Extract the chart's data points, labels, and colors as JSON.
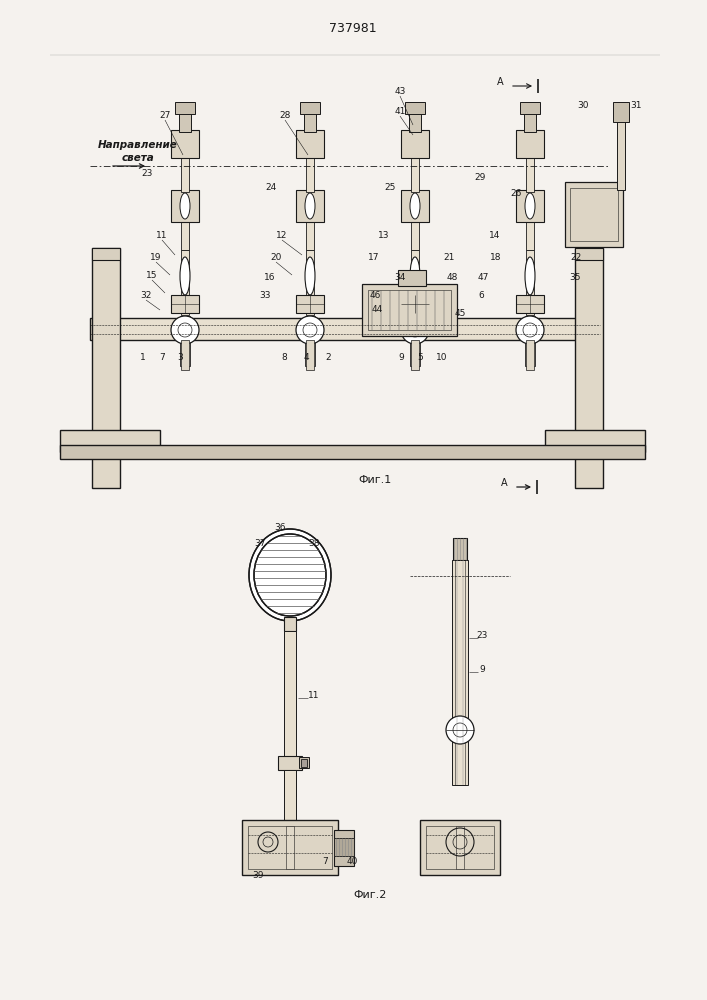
{
  "title": "737981",
  "fig1_label": "Фиг.1",
  "fig2_label": "Фиг.2",
  "bg_color": "#f5f2ee",
  "line_color": "#1a1a1a",
  "lw": 0.8
}
